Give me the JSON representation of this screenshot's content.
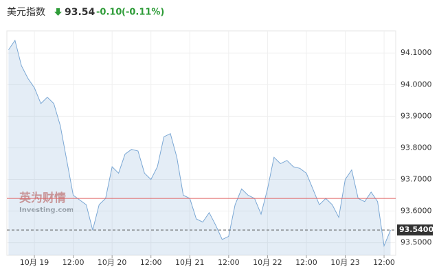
{
  "header": {
    "title": "美元指数",
    "price": "93.54",
    "change": "-0.10",
    "change_pct": "(-0.11%)"
  },
  "watermark": {
    "brand": "英为财情",
    "site": "Investing.com"
  },
  "chart_data": {
    "type": "area",
    "x": [
      -8,
      -6,
      -4,
      -2,
      0,
      2,
      4,
      6,
      8,
      10,
      12,
      14,
      16,
      18,
      20,
      22,
      24,
      26,
      28,
      30,
      32,
      34,
      36,
      38,
      40,
      42,
      44,
      46,
      48,
      50,
      52,
      54,
      56,
      58,
      60,
      62,
      64,
      66,
      68,
      70,
      72,
      74,
      76,
      78,
      80,
      82,
      84,
      86,
      88,
      90,
      92,
      94,
      96,
      98,
      100,
      102,
      104,
      106,
      108,
      110
    ],
    "series": [
      {
        "color": "#7aa7d4",
        "values": [
          94.11,
          94.14,
          94.06,
          94.02,
          93.99,
          93.94,
          93.96,
          93.94,
          93.87,
          93.76,
          93.65,
          93.635,
          93.62,
          93.54,
          93.62,
          93.64,
          93.74,
          93.72,
          93.78,
          93.795,
          93.79,
          93.72,
          93.7,
          93.74,
          93.835,
          93.845,
          93.77,
          93.65,
          93.64,
          93.575,
          93.565,
          93.595,
          93.555,
          93.51,
          93.52,
          93.62,
          93.67,
          93.65,
          93.64,
          93.59,
          93.67,
          93.77,
          93.75,
          93.76,
          93.74,
          93.735,
          93.72,
          93.67,
          93.62,
          93.64,
          93.62,
          93.58,
          93.7,
          93.73,
          93.64,
          93.63,
          93.66,
          93.63,
          93.49,
          93.54
        ]
      }
    ],
    "xlim": [
      -8.5,
      111.6
    ],
    "ylim": [
      93.46,
      94.17
    ],
    "xticks": [
      {
        "value": 0,
        "label": "10月 19"
      },
      {
        "value": 12,
        "label": "12:00"
      },
      {
        "value": 24,
        "label": "10月 20"
      },
      {
        "value": 36,
        "label": "12:00"
      },
      {
        "value": 48,
        "label": "10月 21"
      },
      {
        "value": 60,
        "label": "12:00"
      },
      {
        "value": 72,
        "label": "10月 22"
      },
      {
        "value": 84,
        "label": "12:00"
      },
      {
        "value": 96,
        "label": "10月 23"
      },
      {
        "value": 108,
        "label": "12:00"
      }
    ],
    "yticks": [
      {
        "value": 93.5,
        "label": "93.5000"
      },
      {
        "value": 93.6,
        "label": "93.6000"
      },
      {
        "value": 93.7,
        "label": "93.7000"
      },
      {
        "value": 93.8,
        "label": "93.8000"
      },
      {
        "value": 93.9,
        "label": "93.9000"
      },
      {
        "value": 94.0,
        "label": "94.0000"
      },
      {
        "value": 94.1,
        "label": "94.1000"
      }
    ],
    "grid": true,
    "previous_close": 93.64,
    "previous_close_color": "#e06666",
    "last_price": {
      "value": 93.54,
      "label": "93.5400"
    }
  }
}
